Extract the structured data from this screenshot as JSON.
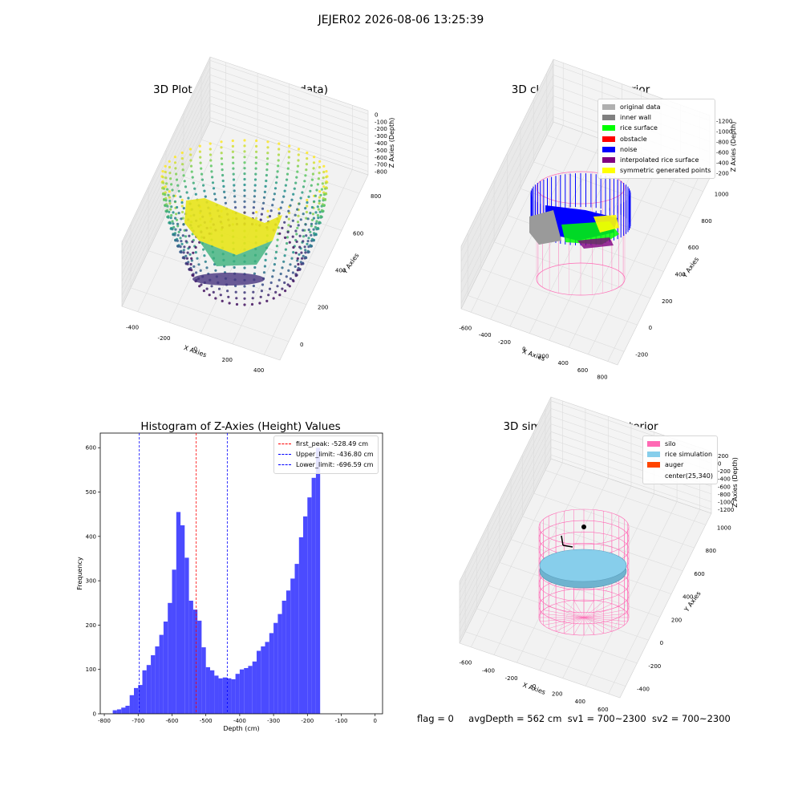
{
  "suptitle": "JEJER02 2026-08-06 13:25:39",
  "colors": {
    "original": "#b0b0b0",
    "inner_wall": "#808080",
    "rice_surface": "#00ff00",
    "obstacle": "#ff0000",
    "noise": "#0000ff",
    "interp": "#800080",
    "symmetric": "#ffff00",
    "silo": "#ff69b4",
    "rice_sim": "#87ceeb",
    "auger": "#ff4500",
    "hist_bar": "#4b4bff"
  },
  "chart_data": [
    {
      "type": "scatter",
      "title": "3D Plot of Silo Interior(row data)",
      "xlabel": "X Axies",
      "ylabel": "Y Axies",
      "zlabel": "Z Axies (Depth)",
      "x_ticks": [
        "-400",
        "-200",
        "0",
        "200",
        "400"
      ],
      "y_ticks": [
        "0",
        "200",
        "400",
        "600",
        "800"
      ],
      "z_ticks": [
        "0",
        "-100",
        "-200",
        "-300",
        "-400",
        "-500",
        "-600",
        "-700",
        "-800"
      ],
      "colormap": "viridis"
    },
    {
      "type": "scatter",
      "title": "3D classify of Silo Interior",
      "xlabel": "X Axies",
      "ylabel": "Y Axies",
      "zlabel": "Z Axies (Depth)",
      "x_ticks": [
        "-600",
        "-400",
        "-200",
        "0",
        "200",
        "400",
        "600",
        "800"
      ],
      "y_ticks": [
        "-200",
        "0",
        "200",
        "400",
        "600",
        "800",
        "1000"
      ],
      "z_ticks": [
        "-1200",
        "-1000",
        "-800",
        "-600",
        "-400",
        "-200"
      ],
      "z_ticks_partial": [
        "200",
        "0"
      ],
      "legend": [
        "original data",
        "inner wall",
        "rice surface",
        "obstacle",
        "noise",
        "interpolated rice surface",
        "symmetric generated points"
      ],
      "legend_loc": "upper right"
    },
    {
      "type": "bar",
      "title": "Histogram of Z-Axies (Height) Values",
      "xlabel": "Depth (cm)",
      "ylabel": "Frequency",
      "bin_width": 12.5,
      "bin_start": -775,
      "values": [
        8,
        10,
        14,
        18,
        42,
        58,
        65,
        98,
        110,
        132,
        152,
        178,
        208,
        250,
        325,
        455,
        425,
        352,
        255,
        235,
        210,
        150,
        105,
        98,
        86,
        80,
        82,
        80,
        78,
        90,
        100,
        103,
        108,
        118,
        142,
        152,
        162,
        182,
        205,
        225,
        255,
        278,
        305,
        338,
        398,
        445,
        488,
        532,
        600
      ],
      "xlim": [
        -812,
        22
      ],
      "ylim": [
        0,
        633
      ],
      "x_ticks": [
        -800,
        -700,
        -600,
        -500,
        -400,
        -300,
        -200,
        -100,
        0
      ],
      "y_ticks": [
        0,
        100,
        200,
        300,
        400,
        500,
        600
      ],
      "vlines": [
        {
          "name": "first_peak: -528.49 cm",
          "x": -528.49,
          "color": "#ff0000"
        },
        {
          "name": "Upper_limit: -436.80 cm",
          "x": -436.8,
          "color": "#0000ff"
        },
        {
          "name": "Lower_limit: -696.59 cm",
          "x": -696.59,
          "color": "#0000ff"
        }
      ],
      "legend_loc": "upper right"
    },
    {
      "type": "scatter",
      "title": "3D simulation of Silo Interior",
      "xlabel": "X Axies",
      "ylabel": "Y Axies",
      "zlabel": "Z Axies (Depth)",
      "x_ticks": [
        "-600",
        "-400",
        "-200",
        "0",
        "200",
        "400",
        "600"
      ],
      "y_ticks": [
        "-400",
        "-200",
        "0",
        "200",
        "400",
        "600",
        "800",
        "1000"
      ],
      "z_ticks": [
        "200",
        "0",
        "-200",
        "-400",
        "-600",
        "-800",
        "-1000",
        "-1200"
      ],
      "legend": [
        "silo",
        "rice simulation",
        "auger",
        "center(25,340)"
      ],
      "legend_loc": "upper right"
    }
  ],
  "footer": {
    "flag": "flag = 0",
    "avg": "avgDepth = 562 cm",
    "sv1": "sv1 = 700~2300",
    "sv2": "sv2 = 700~2300"
  }
}
